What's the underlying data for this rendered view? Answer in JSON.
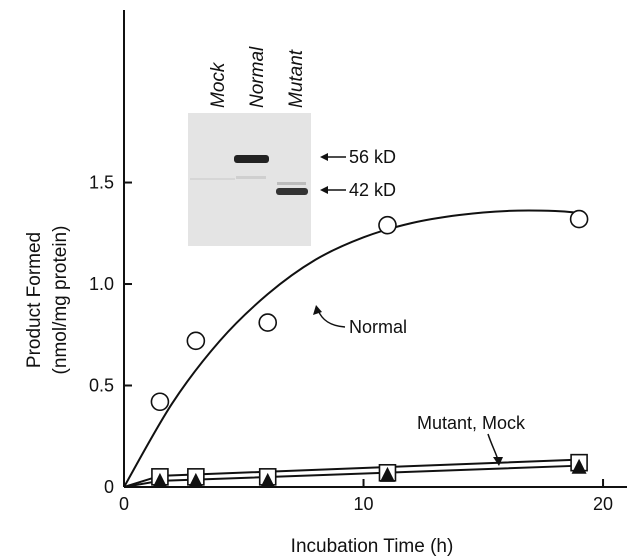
{
  "chart_data": {
    "type": "scatter",
    "title": "",
    "xlabel": "Incubation Time (h)",
    "ylabel": [
      "Product Formed",
      "(nmol/mg protein)"
    ],
    "xlim": [
      0,
      21
    ],
    "ylim": [
      0,
      2.35
    ],
    "x_ticks": [
      0,
      10,
      20
    ],
    "x_tick_labels": [
      "0",
      "10",
      "20"
    ],
    "y_ticks": [
      0,
      0.5,
      1.0,
      1.5
    ],
    "y_tick_labels": [
      "0",
      "0.5",
      "1.0",
      "1.5"
    ],
    "grid": false,
    "series": [
      {
        "marker": "open-circle",
        "x": [
          1.5,
          3,
          6,
          11,
          19
        ],
        "y": [
          0.42,
          0.72,
          0.81,
          1.29,
          1.32
        ],
        "fit": [
          [
            0,
            0
          ],
          [
            2,
            0.41
          ],
          [
            4,
            0.72
          ],
          [
            6,
            0.95
          ],
          [
            8,
            1.12
          ],
          [
            10,
            1.23
          ],
          [
            12,
            1.3
          ],
          [
            14,
            1.34
          ],
          [
            16,
            1.36
          ],
          [
            18,
            1.36
          ],
          [
            19,
            1.35
          ]
        ]
      },
      {
        "marker": "open-square",
        "x": [
          1.5,
          3,
          6,
          11,
          19
        ],
        "y": [
          0.05,
          0.05,
          0.05,
          0.07,
          0.12
        ],
        "fit": [
          [
            0,
            0
          ],
          [
            1.5,
            0.055
          ],
          [
            19,
            0.135
          ]
        ]
      },
      {
        "marker": "filled-triangle",
        "x": [
          1.5,
          3,
          6,
          11,
          19
        ],
        "y": [
          0.03,
          0.03,
          0.03,
          0.06,
          0.1
        ],
        "fit": [
          [
            0,
            0
          ],
          [
            1.5,
            0.03
          ],
          [
            19,
            0.105
          ]
        ]
      }
    ],
    "annotations": [
      {
        "text": "Normal"
      },
      {
        "text": "Mutant, Mock"
      }
    ],
    "inset": {
      "type": "western-blot",
      "lanes": [
        "Mock",
        "Normal",
        "Mutant"
      ],
      "markers": [
        "56 kD",
        "42 kD"
      ]
    }
  }
}
